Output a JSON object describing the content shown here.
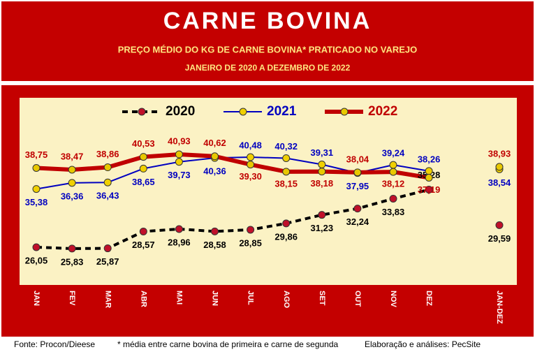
{
  "chart_data": {
    "type": "line",
    "title": "CARNE BOVINA",
    "subtitle": "PREÇO MÉDIO DO KG DE CARNE BOVINA* PRATICADO NO VAREJO",
    "period": "JANEIRO DE 2020 A DEZEMBRO DE 2022",
    "categories": [
      "JAN",
      "FEV",
      "MAR",
      "ABR",
      "MAI",
      "JUN",
      "JUL",
      "AGO",
      "SET",
      "OUT",
      "NOV",
      "DEZ"
    ],
    "annual_category": "JAN-DEZ",
    "ylim": [
      20,
      50
    ],
    "series": [
      {
        "name": "2020",
        "color": "#000000",
        "marker_color": "#c0102a",
        "values": [
          26.05,
          25.83,
          25.87,
          28.57,
          28.96,
          28.58,
          28.85,
          29.86,
          31.23,
          32.24,
          33.83,
          35.28
        ],
        "value_labels": [
          "26,05",
          "25,83",
          "25,87",
          "28,57",
          "28,96",
          "28,58",
          "28,85",
          "29,86",
          "31,23",
          "32,24",
          "33,83",
          "35,28"
        ],
        "annual": 29.59,
        "annual_label": "29,59"
      },
      {
        "name": "2021",
        "color": "#0000c0",
        "marker_color": "#f0d000",
        "values": [
          35.38,
          36.36,
          36.43,
          38.65,
          39.73,
          40.36,
          40.48,
          40.32,
          39.31,
          37.95,
          39.24,
          38.26
        ],
        "value_labels": [
          "35,38",
          "36,36",
          "36,43",
          "38,65",
          "39,73",
          "40,36",
          "40,48",
          "40,32",
          "39,31",
          "37,95",
          "39,24",
          "38,26"
        ],
        "annual": 38.54,
        "annual_label": "38,54"
      },
      {
        "name": "2022",
        "color": "#c00000",
        "marker_color": "#e8c800",
        "values": [
          38.75,
          38.47,
          38.86,
          40.53,
          40.93,
          40.62,
          39.3,
          38.15,
          38.18,
          38.04,
          38.12,
          37.19
        ],
        "value_labels": [
          "38,75",
          "38,47",
          "38,86",
          "40,53",
          "40,93",
          "40,62",
          "39,30",
          "38,15",
          "38,18",
          "38,04",
          "38,12",
          "37,19"
        ],
        "annual": 38.93,
        "annual_label": "38,93"
      }
    ],
    "footer": [
      "Fonte: Procon/Dieese",
      "* média entre carne bovina de primeira e carne de segunda",
      "Elaboração e análises: PecSite"
    ]
  }
}
